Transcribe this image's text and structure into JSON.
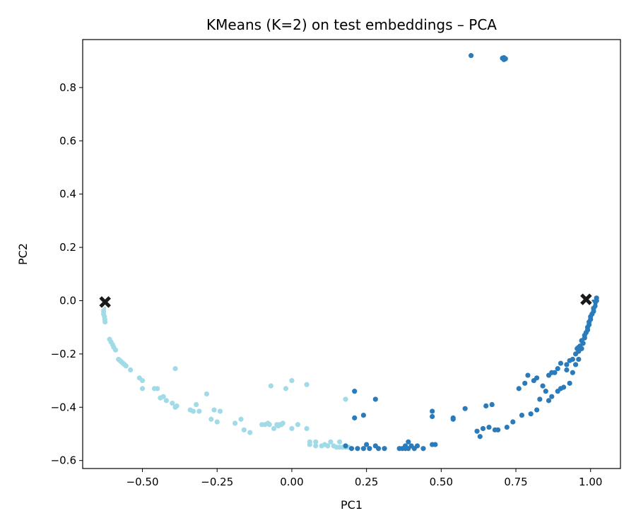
{
  "chart_data": {
    "type": "scatter",
    "title": "KMeans (K=2) on test embeddings – PCA",
    "xlabel": "PC1",
    "ylabel": "PC2",
    "xlim": [
      -0.7,
      1.1
    ],
    "ylim": [
      -0.63,
      0.98
    ],
    "grid": false,
    "x_ticks": [
      -0.5,
      -0.25,
      0.0,
      0.25,
      0.5,
      0.75,
      1.0
    ],
    "x_tick_labels": [
      "−0.50",
      "−0.25",
      "0.00",
      "0.25",
      "0.50",
      "0.75",
      "1.00"
    ],
    "y_ticks": [
      -0.6,
      -0.4,
      -0.2,
      0.0,
      0.2,
      0.4,
      0.6,
      0.8
    ],
    "y_tick_labels": [
      "−0.6",
      "−0.4",
      "−0.2",
      "0.0",
      "0.2",
      "0.4",
      "0.6",
      "0.8"
    ],
    "colors": {
      "cluster0": "#a1dbe7",
      "cluster1": "#2b7bba",
      "centroid": "#1a1a1a"
    },
    "series": [
      {
        "color": "#a1dbe7",
        "points": [
          [
            -0.63,
            -0.02
          ],
          [
            -0.63,
            -0.03
          ],
          [
            -0.63,
            -0.04
          ],
          [
            -0.63,
            -0.05
          ],
          [
            -0.627,
            -0.06
          ],
          [
            -0.626,
            -0.07
          ],
          [
            -0.625,
            -0.08
          ],
          [
            -0.61,
            -0.145
          ],
          [
            -0.605,
            -0.155
          ],
          [
            -0.6,
            -0.165
          ],
          [
            -0.596,
            -0.175
          ],
          [
            -0.59,
            -0.185
          ],
          [
            -0.58,
            -0.22
          ],
          [
            -0.575,
            -0.225
          ],
          [
            -0.57,
            -0.23
          ],
          [
            -0.565,
            -0.235
          ],
          [
            -0.56,
            -0.24
          ],
          [
            -0.555,
            -0.245
          ],
          [
            -0.54,
            -0.26
          ],
          [
            -0.51,
            -0.29
          ],
          [
            -0.5,
            -0.3
          ],
          [
            -0.5,
            -0.33
          ],
          [
            -0.46,
            -0.33
          ],
          [
            -0.45,
            -0.33
          ],
          [
            -0.44,
            -0.365
          ],
          [
            -0.43,
            -0.36
          ],
          [
            -0.42,
            -0.375
          ],
          [
            -0.4,
            -0.385
          ],
          [
            -0.39,
            -0.4
          ],
          [
            -0.385,
            -0.395
          ],
          [
            -0.39,
            -0.255
          ],
          [
            -0.34,
            -0.41
          ],
          [
            -0.33,
            -0.415
          ],
          [
            -0.32,
            -0.39
          ],
          [
            -0.31,
            -0.415
          ],
          [
            -0.285,
            -0.35
          ],
          [
            -0.27,
            -0.445
          ],
          [
            -0.26,
            -0.41
          ],
          [
            -0.25,
            -0.455
          ],
          [
            -0.24,
            -0.415
          ],
          [
            -0.19,
            -0.46
          ],
          [
            -0.17,
            -0.445
          ],
          [
            -0.16,
            -0.485
          ],
          [
            -0.14,
            -0.495
          ],
          [
            -0.1,
            -0.465
          ],
          [
            -0.09,
            -0.465
          ],
          [
            -0.08,
            -0.46
          ],
          [
            -0.075,
            -0.465
          ],
          [
            -0.07,
            -0.32
          ],
          [
            -0.06,
            -0.48
          ],
          [
            -0.05,
            -0.465
          ],
          [
            -0.045,
            -0.47
          ],
          [
            -0.04,
            -0.465
          ],
          [
            -0.035,
            -0.465
          ],
          [
            -0.03,
            -0.46
          ],
          [
            -0.02,
            -0.33
          ],
          [
            0.0,
            -0.3
          ],
          [
            0.0,
            -0.48
          ],
          [
            0.02,
            -0.465
          ],
          [
            0.05,
            -0.315
          ],
          [
            0.05,
            -0.48
          ],
          [
            0.06,
            -0.53
          ],
          [
            0.06,
            -0.54
          ],
          [
            0.08,
            -0.53
          ],
          [
            0.08,
            -0.545
          ],
          [
            0.1,
            -0.545
          ],
          [
            0.11,
            -0.54
          ],
          [
            0.12,
            -0.545
          ],
          [
            0.13,
            -0.53
          ],
          [
            0.14,
            -0.545
          ],
          [
            0.15,
            -0.55
          ],
          [
            0.16,
            -0.55
          ],
          [
            0.16,
            -0.53
          ],
          [
            0.17,
            -0.55
          ],
          [
            0.18,
            -0.37
          ],
          [
            0.18,
            -0.55
          ],
          [
            0.19,
            -0.55
          ]
        ]
      },
      {
        "color": "#2b7bba",
        "points": [
          [
            0.6,
            0.92
          ],
          [
            0.705,
            0.91
          ],
          [
            0.71,
            0.912
          ],
          [
            0.715,
            0.908
          ],
          [
            0.71,
            0.905
          ],
          [
            0.18,
            -0.545
          ],
          [
            0.2,
            -0.555
          ],
          [
            0.21,
            -0.34
          ],
          [
            0.21,
            -0.44
          ],
          [
            0.22,
            -0.555
          ],
          [
            0.24,
            -0.43
          ],
          [
            0.24,
            -0.555
          ],
          [
            0.25,
            -0.54
          ],
          [
            0.26,
            -0.555
          ],
          [
            0.28,
            -0.37
          ],
          [
            0.28,
            -0.545
          ],
          [
            0.29,
            -0.555
          ],
          [
            0.31,
            -0.555
          ],
          [
            0.36,
            -0.555
          ],
          [
            0.37,
            -0.555
          ],
          [
            0.38,
            -0.545
          ],
          [
            0.38,
            -0.555
          ],
          [
            0.39,
            -0.53
          ],
          [
            0.39,
            -0.555
          ],
          [
            0.4,
            -0.545
          ],
          [
            0.41,
            -0.555
          ],
          [
            0.42,
            -0.545
          ],
          [
            0.44,
            -0.555
          ],
          [
            0.47,
            -0.54
          ],
          [
            0.47,
            -0.415
          ],
          [
            0.47,
            -0.435
          ],
          [
            0.48,
            -0.54
          ],
          [
            0.54,
            -0.44
          ],
          [
            0.54,
            -0.445
          ],
          [
            0.58,
            -0.405
          ],
          [
            0.62,
            -0.49
          ],
          [
            0.63,
            -0.51
          ],
          [
            0.64,
            -0.48
          ],
          [
            0.65,
            -0.395
          ],
          [
            0.66,
            -0.475
          ],
          [
            0.67,
            -0.39
          ],
          [
            0.68,
            -0.485
          ],
          [
            0.69,
            -0.485
          ],
          [
            0.72,
            -0.475
          ],
          [
            0.74,
            -0.455
          ],
          [
            0.76,
            -0.33
          ],
          [
            0.77,
            -0.43
          ],
          [
            0.78,
            -0.31
          ],
          [
            0.79,
            -0.28
          ],
          [
            0.8,
            -0.425
          ],
          [
            0.81,
            -0.3
          ],
          [
            0.82,
            -0.29
          ],
          [
            0.82,
            -0.41
          ],
          [
            0.83,
            -0.37
          ],
          [
            0.84,
            -0.32
          ],
          [
            0.85,
            -0.34
          ],
          [
            0.86,
            -0.375
          ],
          [
            0.86,
            -0.28
          ],
          [
            0.87,
            -0.27
          ],
          [
            0.87,
            -0.36
          ],
          [
            0.88,
            -0.27
          ],
          [
            0.89,
            -0.34
          ],
          [
            0.89,
            -0.255
          ],
          [
            0.9,
            -0.33
          ],
          [
            0.9,
            -0.235
          ],
          [
            0.91,
            -0.325
          ],
          [
            0.92,
            -0.26
          ],
          [
            0.92,
            -0.24
          ],
          [
            0.93,
            -0.31
          ],
          [
            0.93,
            -0.225
          ],
          [
            0.94,
            -0.27
          ],
          [
            0.94,
            -0.22
          ],
          [
            0.95,
            -0.24
          ],
          [
            0.95,
            -0.2
          ],
          [
            0.96,
            -0.19
          ],
          [
            0.96,
            -0.22
          ],
          [
            0.965,
            -0.17
          ],
          [
            0.97,
            -0.18
          ],
          [
            0.975,
            -0.16
          ],
          [
            0.98,
            -0.14
          ],
          [
            0.985,
            -0.12
          ],
          [
            0.99,
            -0.1
          ],
          [
            0.995,
            -0.08
          ],
          [
            1.0,
            -0.07
          ],
          [
            1.0,
            -0.06
          ],
          [
            1.005,
            -0.05
          ],
          [
            1.01,
            -0.04
          ],
          [
            1.01,
            -0.03
          ],
          [
            1.015,
            -0.02
          ],
          [
            1.015,
            -0.01
          ],
          [
            1.02,
            0.0
          ],
          [
            1.02,
            0.01
          ],
          [
            1.01,
            -0.005
          ],
          [
            1.005,
            -0.015
          ],
          [
            0.995,
            -0.09
          ],
          [
            0.99,
            -0.11
          ],
          [
            0.98,
            -0.13
          ],
          [
            0.97,
            -0.15
          ],
          [
            0.96,
            -0.175
          ],
          [
            0.955,
            -0.18
          ]
        ]
      }
    ],
    "centroids": [
      [
        -0.625,
        -0.005
      ],
      [
        0.985,
        0.005
      ]
    ]
  }
}
